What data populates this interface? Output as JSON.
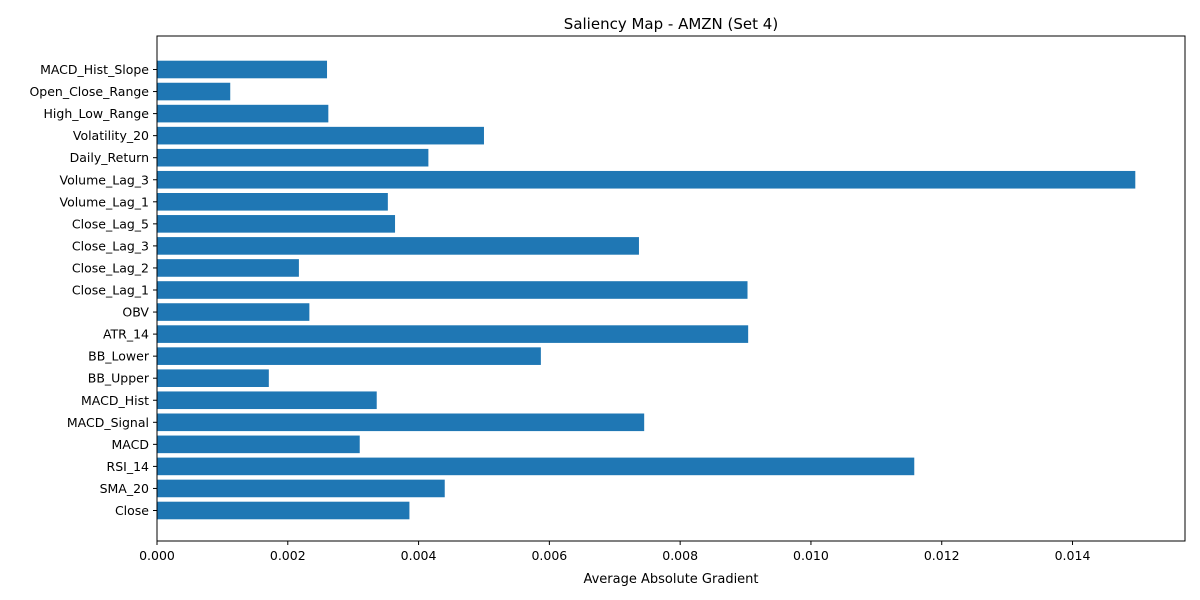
{
  "chart_data": {
    "type": "bar",
    "orientation": "horizontal",
    "title": "Saliency Map - AMZN (Set 4)",
    "xlabel": "Average Absolute Gradient",
    "ylabel": "",
    "xlim": [
      0,
      0.01572
    ],
    "xticks": [
      0.0,
      0.002,
      0.004,
      0.006,
      0.008,
      0.01,
      0.012,
      0.014
    ],
    "xtick_labels": [
      "0.000",
      "0.002",
      "0.004",
      "0.006",
      "0.008",
      "0.010",
      "0.012",
      "0.014"
    ],
    "grid": false,
    "bar_color": "#1f77b4",
    "categories": [
      "Close",
      "SMA_20",
      "RSI_14",
      "MACD",
      "MACD_Signal",
      "MACD_Hist",
      "BB_Upper",
      "BB_Lower",
      "ATR_14",
      "OBV",
      "Close_Lag_1",
      "Close_Lag_2",
      "Close_Lag_3",
      "Close_Lag_5",
      "Volume_Lag_1",
      "Volume_Lag_3",
      "Daily_Return",
      "Volatility_20",
      "High_Low_Range",
      "Open_Close_Range",
      "MACD_Hist_Slope"
    ],
    "values": [
      0.00386,
      0.0044,
      0.01158,
      0.0031,
      0.00745,
      0.00336,
      0.00171,
      0.00587,
      0.00904,
      0.00233,
      0.00903,
      0.00217,
      0.00737,
      0.00364,
      0.00353,
      0.01496,
      0.00415,
      0.005,
      0.00262,
      0.00112,
      0.0026
    ]
  }
}
